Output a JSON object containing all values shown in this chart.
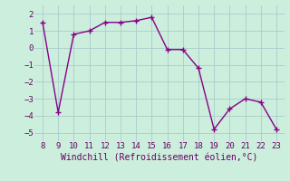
{
  "x": [
    8,
    9,
    10,
    11,
    12,
    13,
    14,
    15,
    16,
    17,
    18,
    19,
    20,
    21,
    22,
    23
  ],
  "y": [
    1.5,
    -3.8,
    0.8,
    1.0,
    1.5,
    1.5,
    1.6,
    1.8,
    -0.1,
    -0.1,
    -1.2,
    -4.8,
    -3.6,
    -3.0,
    -3.2,
    -4.8
  ],
  "xlim": [
    7.5,
    23.5
  ],
  "ylim": [
    -5.5,
    2.5
  ],
  "yticks": [
    -5,
    -4,
    -3,
    -2,
    -1,
    0,
    1,
    2
  ],
  "xticks": [
    8,
    9,
    10,
    11,
    12,
    13,
    14,
    15,
    16,
    17,
    18,
    19,
    20,
    21,
    22,
    23
  ],
  "line_color": "#880088",
  "marker": "+",
  "marker_size": 4,
  "marker_edge_width": 1.0,
  "xlabel": "Windchill (Refroidissement éolien,°C)",
  "background_color": "#cceedd",
  "grid_color": "#aacccc",
  "xlabel_fontsize": 7,
  "tick_fontsize": 6.5,
  "line_width": 1.0
}
